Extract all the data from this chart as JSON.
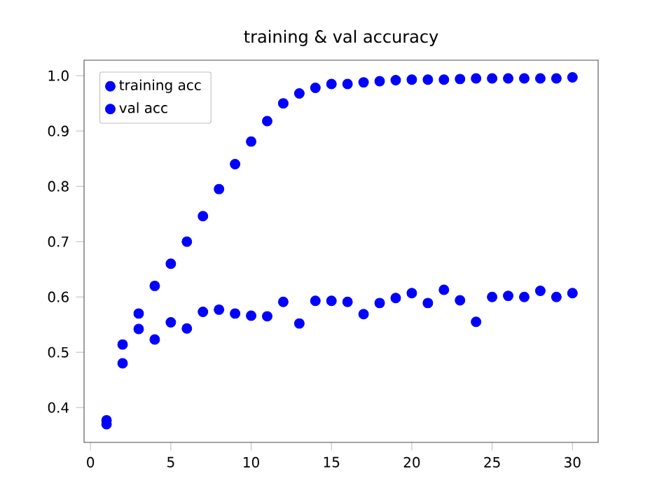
{
  "chart_data": {
    "type": "scatter",
    "title": "training & val accuracy",
    "x": [
      1,
      2,
      3,
      4,
      5,
      6,
      7,
      8,
      9,
      10,
      11,
      12,
      13,
      14,
      15,
      16,
      17,
      18,
      19,
      20,
      21,
      22,
      23,
      24,
      25,
      26,
      27,
      28,
      29,
      30
    ],
    "series": [
      {
        "name": "training acc",
        "color": "#0000ff",
        "values": [
          0.37,
          0.48,
          0.542,
          0.62,
          0.66,
          0.7,
          0.746,
          0.795,
          0.84,
          0.881,
          0.918,
          0.95,
          0.968,
          0.978,
          0.985,
          0.985,
          0.988,
          0.99,
          0.992,
          0.993,
          0.993,
          0.993,
          0.994,
          0.995,
          0.995,
          0.995,
          0.995,
          0.995,
          0.995,
          0.997
        ]
      },
      {
        "name": "val acc",
        "color": "#0000ff",
        "values": [
          0.377,
          0.514,
          0.57,
          0.523,
          0.554,
          0.543,
          0.573,
          0.577,
          0.57,
          0.566,
          0.565,
          0.591,
          0.552,
          0.593,
          0.593,
          0.591,
          0.569,
          0.589,
          0.598,
          0.607,
          0.589,
          0.613,
          0.594,
          0.555,
          0.6,
          0.602,
          0.6,
          0.611,
          0.6,
          0.607
        ]
      }
    ],
    "xlim": [
      -0.4,
      31.6
    ],
    "ylim": [
      0.337,
      1.028
    ],
    "xticks": [
      0,
      5,
      10,
      15,
      20,
      25,
      30
    ],
    "yticks": [
      {
        "value": 0.4,
        "label": "0.4"
      },
      {
        "value": 0.5,
        "label": "0.5"
      },
      {
        "value": 0.6,
        "label": "0.6"
      },
      {
        "value": 0.7,
        "label": "0.7"
      },
      {
        "value": 0.8,
        "label": "0.8"
      },
      {
        "value": 0.9,
        "label": "0.9"
      },
      {
        "value": 1.0,
        "label": "1.0"
      }
    ],
    "legend": "top left",
    "marker": "circle"
  }
}
